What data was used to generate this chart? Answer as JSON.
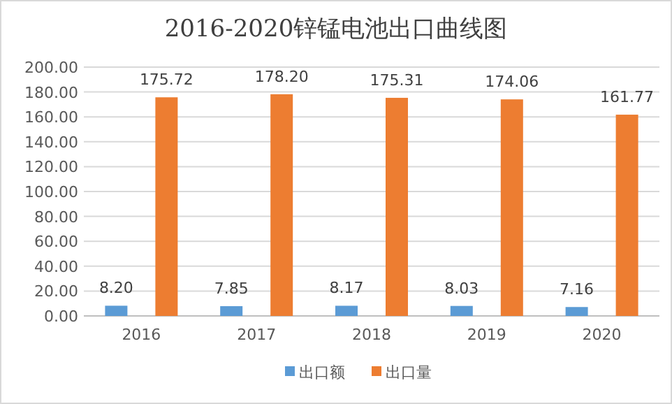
{
  "chart_data": {
    "type": "bar",
    "title": "2016-2020锌锰电池出口曲线图",
    "categories": [
      "2016",
      "2017",
      "2018",
      "2019",
      "2020"
    ],
    "series": [
      {
        "name": "出口额",
        "color": "#5b9bd5",
        "values": [
          8.2,
          7.85,
          8.17,
          8.03,
          7.16
        ],
        "value_labels": [
          "8.20",
          "7.85",
          "8.17",
          "8.03",
          "7.16"
        ]
      },
      {
        "name": "出口量",
        "color": "#ed7d31",
        "values": [
          175.72,
          178.2,
          175.31,
          174.06,
          161.77
        ],
        "value_labels": [
          "175.72",
          "178.20",
          "175.31",
          "174.06",
          "161.77"
        ]
      }
    ],
    "ylim": [
      0,
      200
    ],
    "yticks": [
      {
        "value": 0,
        "label": "0.00"
      },
      {
        "value": 20,
        "label": "20.00"
      },
      {
        "value": 40,
        "label": "40.00"
      },
      {
        "value": 60,
        "label": "60.00"
      },
      {
        "value": 80,
        "label": "80.00"
      },
      {
        "value": 100,
        "label": "100.00"
      },
      {
        "value": 120,
        "label": "120.00"
      },
      {
        "value": 140,
        "label": "140.00"
      },
      {
        "value": 160,
        "label": "160.00"
      },
      {
        "value": 180,
        "label": "180.00"
      },
      {
        "value": 200,
        "label": "200.00"
      }
    ],
    "grid": "y",
    "legend": "bottom"
  }
}
